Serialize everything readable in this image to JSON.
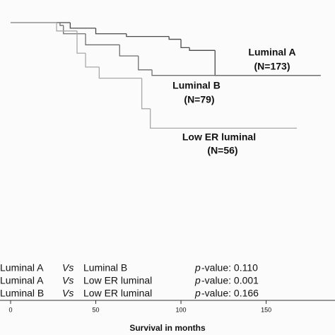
{
  "chart_data": {
    "type": "step",
    "x_label": "Survival in months",
    "xlim": [
      0,
      190
    ],
    "xticks": [
      0,
      50,
      100,
      150
    ],
    "ylim": [
      0,
      1
    ],
    "series": [
      {
        "name": "Luminal A",
        "n_label": "(N=173)",
        "color": "#4a4a4a",
        "x": [
          0,
          35,
          50,
          68,
          93,
          100,
          105,
          120,
          182
        ],
        "values": [
          1.0,
          0.98,
          0.96,
          0.95,
          0.94,
          0.91,
          0.9,
          0.81,
          0.81
        ]
      },
      {
        "name": "Luminal B",
        "n_label": "(N=79)",
        "color": "#6e6e6e",
        "x": [
          0,
          29,
          31,
          44,
          64,
          75,
          83,
          182
        ],
        "values": [
          1.0,
          0.99,
          0.96,
          0.92,
          0.88,
          0.83,
          0.81,
          0.81
        ]
      },
      {
        "name": "Low ER luminal",
        "n_label": "(N=56)",
        "color": "#a8a8a8",
        "x": [
          0,
          27,
          39,
          44,
          52,
          77,
          82,
          168
        ],
        "values": [
          1.0,
          0.97,
          0.89,
          0.84,
          0.8,
          0.69,
          0.62,
          0.62
        ]
      }
    ],
    "comparisons": [
      [
        "Luminal A",
        "Vs",
        "Luminal B",
        "p",
        "-value: 0.110"
      ],
      [
        "Luminal A",
        "Vs",
        "Low ER luminal",
        "p",
        "-value: 0.001"
      ],
      [
        "Luminal B",
        "Vs",
        "Low ER luminal",
        "p",
        "-value: 0.166"
      ]
    ]
  }
}
